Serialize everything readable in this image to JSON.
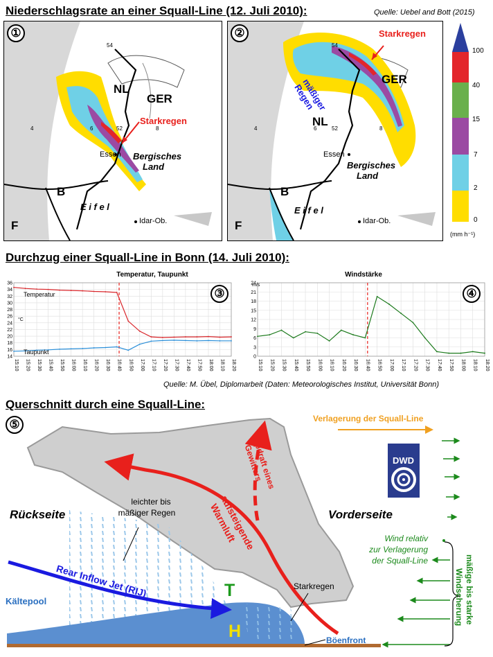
{
  "header": {
    "title": "Niederschlagsrate an einer Squall-Line (12. Juli 2010):",
    "source": "Quelle: Uebel and Bott (2015)"
  },
  "map1": {
    "number": "①",
    "nl": "NL",
    "ger": "GER",
    "b": "B",
    "f": "F",
    "starkregen": "Starkregen",
    "essen": "Essen",
    "bergisches": "Bergisches",
    "land": "Land",
    "eifel": "E i f e l",
    "idar": "Idar-Ob.",
    "lat54": "54",
    "lat52": "52",
    "lon4": "4",
    "lon6": "6",
    "lon8": "8"
  },
  "map2": {
    "number": "②",
    "nl": "NL",
    "ger": "GER",
    "b": "B",
    "f": "F",
    "starkregen": "Starkregen",
    "maessiger": "mäßiger",
    "regen": "Regen",
    "essen": "Essen",
    "bergisches": "Bergisches",
    "land": "Land",
    "eifel": "E i f e l",
    "idar": "Idar-Ob.",
    "lat54": "54",
    "lat52": "52",
    "lon4": "4",
    "lon6": "6",
    "lon8": "8"
  },
  "colorbar": {
    "labels": [
      "100",
      "40",
      "15",
      "7",
      "2",
      "0"
    ],
    "unit": "(mm h⁻¹)",
    "colors": [
      "#2b3f9e",
      "#e3262b",
      "#6ab04c",
      "#9b4aa3",
      "#6fd0e6",
      "#ffdd00"
    ]
  },
  "section2": {
    "title": "Durchzug einer Squall-Line in Bonn (14. Juli 2010):",
    "source": "Quelle: M. Übel, Diplomarbeit (Daten: Meteorologisches Institut, Universität Bonn)"
  },
  "chart_data": [
    {
      "type": "line",
      "title": "Temperatur, Taupunkt",
      "number": "③",
      "unit": "°C",
      "x": [
        "15:10",
        "15:20",
        "15:30",
        "15:40",
        "15:50",
        "16:00",
        "16:10",
        "16:20",
        "16:30",
        "16:40",
        "16:50",
        "17:00",
        "17:10",
        "17:20",
        "17:30",
        "17:40",
        "17:50",
        "18:00",
        "18:10",
        "18:20"
      ],
      "ylim": [
        14,
        36
      ],
      "yticks": [
        14,
        16,
        18,
        20,
        22,
        24,
        26,
        28,
        30,
        32,
        34,
        36
      ],
      "event_time": "16:42",
      "series": [
        {
          "name": "Temperatur",
          "color": "#d9262b",
          "values": [
            34.6,
            34.3,
            34.1,
            34.0,
            33.8,
            33.7,
            33.6,
            33.4,
            33.3,
            33.1,
            24.5,
            21.5,
            19.8,
            19.6,
            19.7,
            19.8,
            19.8,
            19.9,
            19.7,
            19.8
          ]
        },
        {
          "name": "Taupunkt",
          "color": "#2b8fd9",
          "values": [
            15.5,
            15.6,
            15.8,
            15.9,
            16.1,
            16.2,
            16.3,
            16.5,
            16.6,
            16.8,
            15.8,
            17.6,
            18.5,
            18.7,
            18.8,
            18.7,
            18.6,
            18.7,
            18.6,
            18.6
          ]
        }
      ]
    },
    {
      "type": "line",
      "title": "Windstärke",
      "number": "④",
      "unit": "m/s",
      "x": [
        "15:10",
        "15:20",
        "15:30",
        "15:40",
        "15:50",
        "16:00",
        "16:10",
        "16:20",
        "16:30",
        "16:40",
        "16:50",
        "17:00",
        "17:10",
        "17:20",
        "17:30",
        "17:40",
        "17:50",
        "18:00",
        "18:10",
        "18:20"
      ],
      "ylim": [
        0,
        24
      ],
      "yticks": [
        0,
        3,
        6,
        9,
        12,
        15,
        18,
        21,
        24
      ],
      "event_time": "16:42",
      "series": [
        {
          "name": "",
          "color": "#1c7a1c",
          "values": [
            6.5,
            7.0,
            8.5,
            6.0,
            8.0,
            7.5,
            5.0,
            8.5,
            7.0,
            6.0,
            19.5,
            17.0,
            14.0,
            11.0,
            6.0,
            1.5,
            1.0,
            1.0,
            1.5,
            1.0
          ]
        }
      ]
    }
  ],
  "section3": {
    "title": "Querschnitt durch eine Squall-Line:",
    "number": "⑤",
    "verlagerung": "Verlagerung der Squall-Line",
    "updraft": [
      "Updraft eines",
      "Gewitters"
    ],
    "aufsteigende": [
      "aufsteigende",
      "Warmluft"
    ],
    "leichter": [
      "leichter bis",
      "mäßiger Regen"
    ],
    "rueckseite": "Rückseite",
    "vorderseite": "Vorderseite",
    "rij": "Rear Inflow Jet (RIJ)",
    "kaeltepool": "Kältepool",
    "t": "T",
    "h": "H",
    "starkregen": "Starkregen",
    "boenfront": "Böenfront",
    "wind_relativ": [
      "Wind relativ",
      "zur Verlagerung",
      "der Squall-Line"
    ],
    "windscherung": [
      "mäßige bis starke",
      "Windscherung"
    ],
    "dwd": "DWD",
    "colors": {
      "orange": "#f0a020",
      "green": "#1c8a1c",
      "red": "#e8201c",
      "blue": "#1a1ae0",
      "coldpool": "#5b8fd0"
    }
  }
}
